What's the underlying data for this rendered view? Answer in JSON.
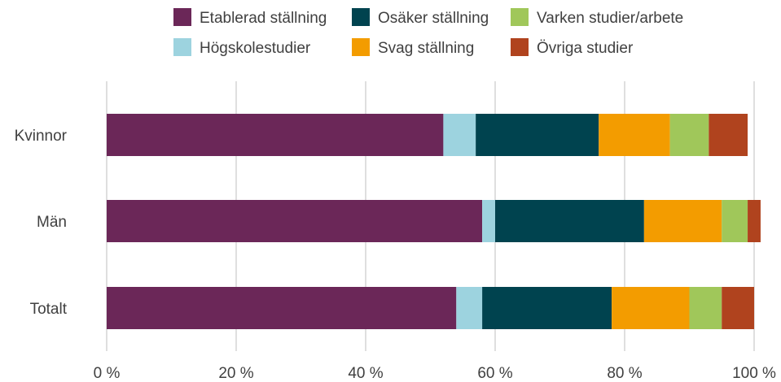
{
  "chart_data": {
    "type": "bar",
    "orientation": "horizontal",
    "stacked": true,
    "categories": [
      "Kvinnor",
      "Män",
      "Totalt"
    ],
    "series": [
      {
        "name": "Etablerad ställning",
        "color": "#6b2758",
        "values": [
          52,
          58,
          54
        ]
      },
      {
        "name": "Högskolestudier",
        "color": "#9dd3df",
        "values": [
          5,
          2,
          4
        ]
      },
      {
        "name": "Osäker ställning",
        "color": "#00434f",
        "values": [
          19,
          23,
          20
        ]
      },
      {
        "name": "Svag ställning",
        "color": "#f39c00",
        "values": [
          11,
          12,
          12
        ]
      },
      {
        "name": "Varken studier/arbete",
        "color": "#a0c75a",
        "values": [
          6,
          4,
          5
        ]
      },
      {
        "name": "Övriga studier",
        "color": "#b0431e",
        "values": [
          6,
          2,
          5
        ]
      }
    ],
    "xlim": [
      0,
      100
    ],
    "x_ticks": [
      0,
      20,
      40,
      60,
      80,
      100
    ],
    "x_tick_labels": [
      "0 %",
      "20 %",
      "40 %",
      "60 %",
      "80 %",
      "100 %"
    ],
    "grid": true,
    "legend_position": "top",
    "legend_order": [
      "Etablerad ställning",
      "Osäker ställning",
      "Varken studier/arbete",
      "Högskolestudier",
      "Svag ställning",
      "Övriga studier"
    ]
  }
}
